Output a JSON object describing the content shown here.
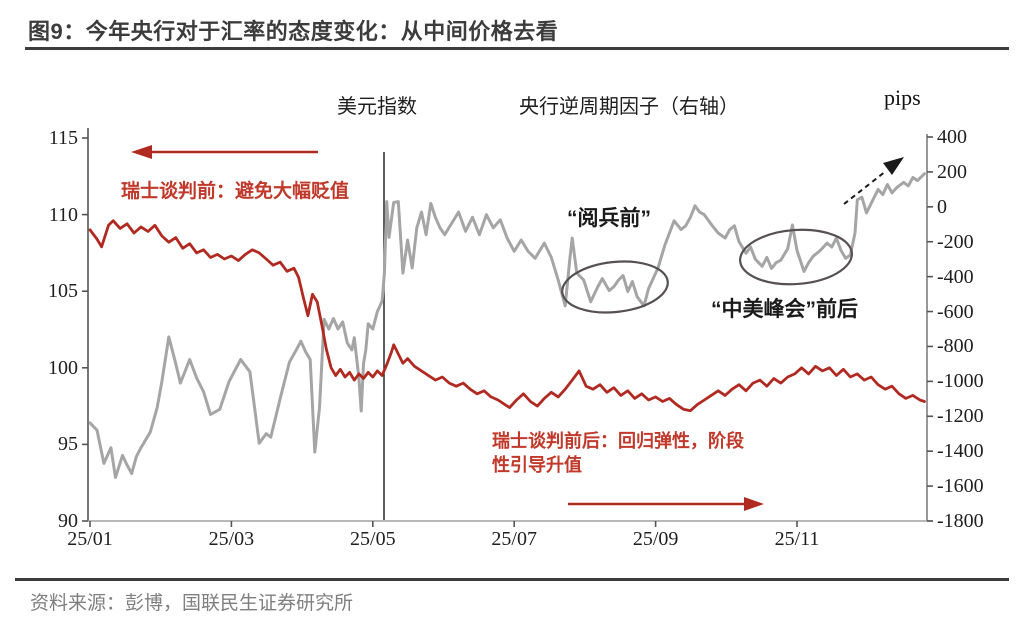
{
  "title": "图9：今年央行对于汇率的态度变化：从中间价格去看",
  "legend": {
    "usd": "美元指数",
    "ccf": "央行逆周期因子（右轴）",
    "unit": "pips"
  },
  "annotations": {
    "pre_swiss": "瑞士谈判前：避免大幅贬值",
    "parade": "“阅兵前”",
    "summit": "“中美峰会”前后",
    "post_swiss_line1": "瑞士谈判前后：回归弹性，阶段",
    "post_swiss_line2": "性引导升值"
  },
  "footer": {
    "source": "资料来源：彭博，国联民生证券研究所"
  },
  "colors": {
    "usd_line": "#b02a22",
    "ccf_line": "#a5a5a5",
    "annotation_red": "#c0392b",
    "ellipse": "#585050",
    "axis": "#8c8c8c",
    "text_dark": "#1f1f1f"
  },
  "chart_data": {
    "type": "line",
    "title": "今年央行对于汇率的态度变化：从中间价格去看",
    "x_unit": "day_of_2025",
    "x_tick_labels": [
      "25/01",
      "25/03",
      "25/05",
      "25/07",
      "25/09",
      "25/11"
    ],
    "left_axis": {
      "min": 90,
      "max": 115,
      "ticks": [
        115,
        110,
        105,
        100,
        95,
        90
      ]
    },
    "right_axis": {
      "min": -1800,
      "max": 400,
      "unit": "pips",
      "ticks": [
        400,
        200,
        0,
        -200,
        -400,
        -600,
        -800,
        -1000,
        -1200,
        -1400,
        -1600,
        -1800
      ]
    },
    "grid": false,
    "legend_position": "top",
    "vertical_line_day": 127,
    "series": [
      {
        "name": "美元指数",
        "axis": "left",
        "color": "#b02a22",
        "points": [
          [
            0,
            109.0
          ],
          [
            3,
            108.4
          ],
          [
            5,
            107.9
          ],
          [
            8,
            109.3
          ],
          [
            10,
            109.6
          ],
          [
            13,
            109.1
          ],
          [
            16,
            109.4
          ],
          [
            19,
            108.8
          ],
          [
            22,
            109.2
          ],
          [
            25,
            108.9
          ],
          [
            28,
            109.3
          ],
          [
            31,
            108.6
          ],
          [
            34,
            108.2
          ],
          [
            37,
            108.5
          ],
          [
            40,
            107.8
          ],
          [
            43,
            108.1
          ],
          [
            46,
            107.5
          ],
          [
            49,
            107.7
          ],
          [
            52,
            107.2
          ],
          [
            55,
            107.4
          ],
          [
            58,
            107.1
          ],
          [
            61,
            107.3
          ],
          [
            64,
            107.0
          ],
          [
            67,
            107.4
          ],
          [
            70,
            107.7
          ],
          [
            73,
            107.5
          ],
          [
            76,
            107.1
          ],
          [
            79,
            106.7
          ],
          [
            82,
            106.9
          ],
          [
            85,
            106.3
          ],
          [
            88,
            106.5
          ],
          [
            90,
            105.9
          ],
          [
            92,
            104.6
          ],
          [
            94,
            103.4
          ],
          [
            96,
            104.8
          ],
          [
            98,
            104.3
          ],
          [
            100,
            102.8
          ],
          [
            102,
            101.2
          ],
          [
            104,
            100.0
          ],
          [
            106,
            99.5
          ],
          [
            108,
            99.9
          ],
          [
            110,
            99.4
          ],
          [
            112,
            99.7
          ],
          [
            114,
            99.2
          ],
          [
            116,
            99.6
          ],
          [
            118,
            99.3
          ],
          [
            120,
            99.7
          ],
          [
            122,
            99.4
          ],
          [
            124,
            99.8
          ],
          [
            126,
            99.5
          ],
          [
            128,
            100.2
          ],
          [
            130,
            101.0
          ],
          [
            131,
            101.5
          ],
          [
            133,
            100.9
          ],
          [
            135,
            100.3
          ],
          [
            137,
            100.6
          ],
          [
            140,
            100.1
          ],
          [
            143,
            99.8
          ],
          [
            146,
            99.5
          ],
          [
            149,
            99.2
          ],
          [
            152,
            99.4
          ],
          [
            155,
            99.0
          ],
          [
            158,
            98.8
          ],
          [
            161,
            99.0
          ],
          [
            164,
            98.6
          ],
          [
            167,
            98.3
          ],
          [
            170,
            98.5
          ],
          [
            173,
            98.1
          ],
          [
            176,
            97.9
          ],
          [
            179,
            97.6
          ],
          [
            181,
            97.4
          ],
          [
            184,
            97.9
          ],
          [
            187,
            98.3
          ],
          [
            190,
            97.8
          ],
          [
            193,
            97.5
          ],
          [
            196,
            98.0
          ],
          [
            199,
            98.4
          ],
          [
            202,
            98.1
          ],
          [
            205,
            98.6
          ],
          [
            208,
            99.2
          ],
          [
            211,
            99.8
          ],
          [
            214,
            98.8
          ],
          [
            217,
            98.6
          ],
          [
            220,
            98.9
          ],
          [
            223,
            98.4
          ],
          [
            226,
            98.7
          ],
          [
            229,
            98.2
          ],
          [
            232,
            98.5
          ],
          [
            235,
            98.0
          ],
          [
            238,
            98.3
          ],
          [
            241,
            97.9
          ],
          [
            244,
            98.1
          ],
          [
            247,
            97.8
          ],
          [
            250,
            98.0
          ],
          [
            253,
            97.6
          ],
          [
            256,
            97.3
          ],
          [
            259,
            97.2
          ],
          [
            262,
            97.6
          ],
          [
            265,
            97.9
          ],
          [
            268,
            98.2
          ],
          [
            271,
            98.5
          ],
          [
            274,
            98.2
          ],
          [
            277,
            98.6
          ],
          [
            280,
            98.9
          ],
          [
            283,
            98.5
          ],
          [
            286,
            99.0
          ],
          [
            289,
            99.2
          ],
          [
            292,
            98.8
          ],
          [
            295,
            99.3
          ],
          [
            298,
            99.0
          ],
          [
            301,
            99.4
          ],
          [
            304,
            99.6
          ],
          [
            307,
            100.0
          ],
          [
            310,
            99.6
          ],
          [
            313,
            100.1
          ],
          [
            316,
            99.8
          ],
          [
            319,
            100.0
          ],
          [
            322,
            99.5
          ],
          [
            325,
            99.9
          ],
          [
            328,
            99.4
          ],
          [
            331,
            99.6
          ],
          [
            334,
            99.2
          ],
          [
            337,
            99.4
          ],
          [
            340,
            98.9
          ],
          [
            343,
            98.6
          ],
          [
            346,
            98.8
          ],
          [
            349,
            98.3
          ],
          [
            352,
            98.0
          ],
          [
            355,
            98.2
          ],
          [
            358,
            97.9
          ],
          [
            360,
            97.8
          ]
        ]
      },
      {
        "name": "央行逆周期因子（右轴）",
        "axis": "right",
        "color": "#a5a5a5",
        "points": [
          [
            0,
            -1238
          ],
          [
            3,
            -1280
          ],
          [
            6,
            -1470
          ],
          [
            9,
            -1380
          ],
          [
            11,
            -1550
          ],
          [
            14,
            -1424
          ],
          [
            16,
            -1480
          ],
          [
            18,
            -1528
          ],
          [
            20,
            -1430
          ],
          [
            22,
            -1380
          ],
          [
            26,
            -1290
          ],
          [
            29,
            -1150
          ],
          [
            31,
            -1000
          ],
          [
            34,
            -745
          ],
          [
            37,
            -900
          ],
          [
            39,
            -1010
          ],
          [
            43,
            -875
          ],
          [
            46,
            -980
          ],
          [
            49,
            -1060
          ],
          [
            52,
            -1190
          ],
          [
            56,
            -1160
          ],
          [
            60,
            -1000
          ],
          [
            65,
            -875
          ],
          [
            69,
            -945
          ],
          [
            73,
            -1355
          ],
          [
            76,
            -1300
          ],
          [
            78,
            -1320
          ],
          [
            82,
            -1100
          ],
          [
            86,
            -890
          ],
          [
            89,
            -820
          ],
          [
            91,
            -770
          ],
          [
            93,
            -830
          ],
          [
            95,
            -875
          ],
          [
            97,
            -1405
          ],
          [
            99,
            -1150
          ],
          [
            101,
            -645
          ],
          [
            103,
            -700
          ],
          [
            105,
            -640
          ],
          [
            107,
            -700
          ],
          [
            109,
            -660
          ],
          [
            111,
            -780
          ],
          [
            113,
            -820
          ],
          [
            114,
            -750
          ],
          [
            116,
            -980
          ],
          [
            117,
            -1170
          ],
          [
            118,
            -900
          ],
          [
            119,
            -820
          ],
          [
            120,
            -670
          ],
          [
            122,
            -700
          ],
          [
            124,
            -600
          ],
          [
            126,
            -540
          ],
          [
            127,
            -380
          ],
          [
            128,
            30
          ],
          [
            129,
            -175
          ],
          [
            131,
            25
          ],
          [
            133,
            30
          ],
          [
            135,
            -380
          ],
          [
            137,
            -190
          ],
          [
            139,
            -350
          ],
          [
            141,
            -120
          ],
          [
            143,
            -30
          ],
          [
            145,
            -160
          ],
          [
            147,
            20
          ],
          [
            149,
            -60
          ],
          [
            151,
            -120
          ],
          [
            153,
            -160
          ],
          [
            156,
            -95
          ],
          [
            159,
            -30
          ],
          [
            162,
            -140
          ],
          [
            165,
            -60
          ],
          [
            168,
            -160
          ],
          [
            171,
            -45
          ],
          [
            174,
            -120
          ],
          [
            177,
            -75
          ],
          [
            180,
            -180
          ],
          [
            183,
            -255
          ],
          [
            186,
            -190
          ],
          [
            189,
            -255
          ],
          [
            192,
            -295
          ],
          [
            196,
            -208
          ],
          [
            199,
            -290
          ],
          [
            202,
            -420
          ],
          [
            205,
            -567
          ],
          [
            207,
            -300
          ],
          [
            208,
            -179
          ],
          [
            210,
            -380
          ],
          [
            213,
            -420
          ],
          [
            216,
            -544
          ],
          [
            219,
            -460
          ],
          [
            221,
            -411
          ],
          [
            224,
            -480
          ],
          [
            226,
            -457
          ],
          [
            228,
            -420
          ],
          [
            230,
            -394
          ],
          [
            232,
            -486
          ],
          [
            234,
            -428
          ],
          [
            236,
            -515
          ],
          [
            239,
            -567
          ],
          [
            241,
            -468
          ],
          [
            245,
            -352
          ],
          [
            248,
            -219
          ],
          [
            252,
            -80
          ],
          [
            255,
            -130
          ],
          [
            257,
            -109
          ],
          [
            259,
            -60
          ],
          [
            261,
            6
          ],
          [
            263,
            -30
          ],
          [
            265,
            -45
          ],
          [
            268,
            -100
          ],
          [
            271,
            -150
          ],
          [
            274,
            -179
          ],
          [
            276,
            -130
          ],
          [
            278,
            -109
          ],
          [
            280,
            -200
          ],
          [
            283,
            -266
          ],
          [
            285,
            -230
          ],
          [
            287,
            -300
          ],
          [
            290,
            -341
          ],
          [
            292,
            -290
          ],
          [
            294,
            -353
          ],
          [
            296,
            -320
          ],
          [
            298,
            -306
          ],
          [
            301,
            -240
          ],
          [
            303,
            -104
          ],
          [
            305,
            -250
          ],
          [
            308,
            -370
          ],
          [
            310,
            -320
          ],
          [
            312,
            -283
          ],
          [
            315,
            -250
          ],
          [
            318,
            -208
          ],
          [
            320,
            -230
          ],
          [
            322,
            -179
          ],
          [
            324,
            -250
          ],
          [
            326,
            -295
          ],
          [
            328,
            -277
          ],
          [
            330,
            -150
          ],
          [
            331,
            40
          ],
          [
            333,
            55
          ],
          [
            335,
            -35
          ],
          [
            337,
            20
          ],
          [
            340,
            100
          ],
          [
            342,
            70
          ],
          [
            344,
            128
          ],
          [
            346,
            80
          ],
          [
            348,
            110
          ],
          [
            351,
            140
          ],
          [
            353,
            120
          ],
          [
            355,
            168
          ],
          [
            357,
            150
          ],
          [
            360,
            190
          ]
        ]
      }
    ]
  }
}
